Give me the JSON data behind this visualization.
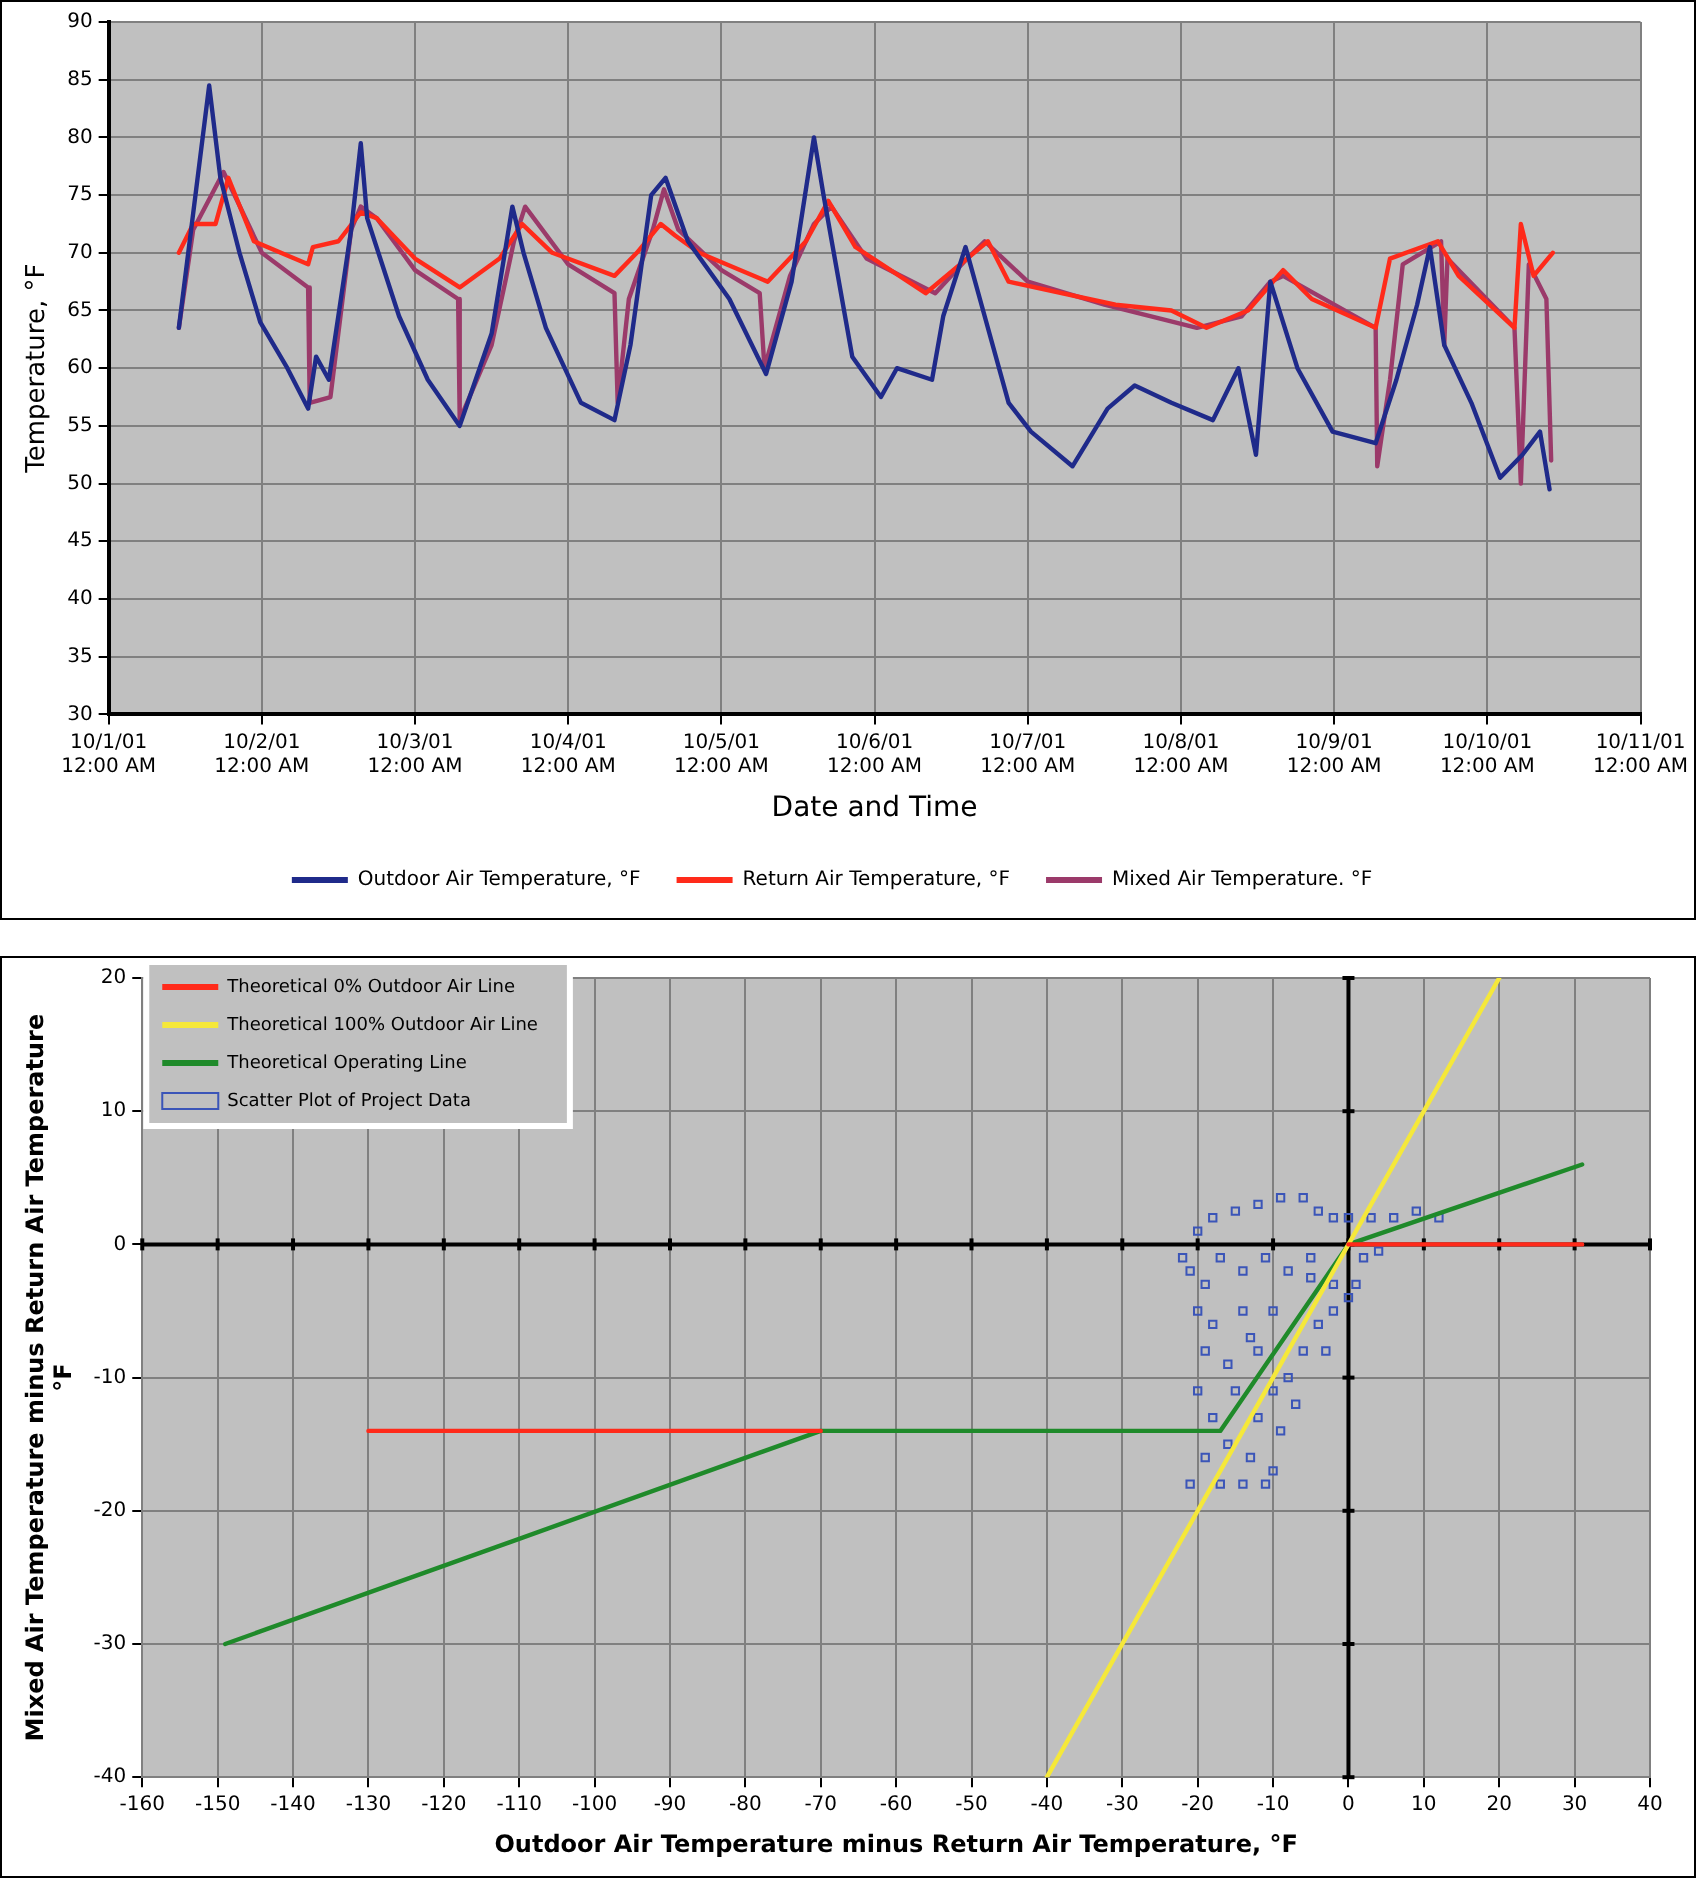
{
  "chart_data": [
    {
      "type": "line",
      "xlabel": "Date and Time",
      "ylabel": "Temperature, °F",
      "grid": true,
      "legend": "bottom",
      "marker": "none",
      "xlim": [
        "--10-01T00:00",
        "--10-11T00:00"
      ],
      "xticks": [
        {
          "value": "--10-01T00:00",
          "label": "10/1/01 12:00 AM"
        },
        {
          "value": "--10-02T00:00",
          "label": "10/2/01 12:00 AM"
        },
        {
          "value": "--10-03T00:00",
          "label": "10/3/01 12:00 AM"
        },
        {
          "value": "--10-04T00:00",
          "label": "10/4/01 12:00 AM"
        },
        {
          "value": "--10-05T00:00",
          "label": "10/5/01 12:00 AM"
        },
        {
          "value": "--10-06T00:00",
          "label": "10/6/01 12:00 AM"
        },
        {
          "value": "--10-07T00:00",
          "label": "10/7/01 12:00 AM"
        },
        {
          "value": "--10-08T00:00",
          "label": "10/8/01 12:00 AM"
        },
        {
          "value": "--10-09T00:00",
          "label": "10/9/01 12:00 AM"
        },
        {
          "value": "--10-10T00:00",
          "label": "10/10/01 12:00 AM"
        },
        {
          "value": "--10-11T00:00",
          "label": "10/11/01 12:00 AM"
        }
      ],
      "ylim": [
        30,
        90
      ],
      "yticks": [
        30,
        35,
        40,
        45,
        50,
        55,
        60,
        65,
        70,
        75,
        80,
        85,
        90
      ],
      "series": [
        {
          "name": "Outdoor Air Temperature, °F",
          "color": "#1f2a8a",
          "x": [
            "--10-01T11:00",
            "--10-01T15:45",
            "--10-01T17:30",
            "--10-01T20:30",
            "--10-01T23:45",
            "--10-02T04:00",
            "--10-02T07:15",
            "--10-02T08:30",
            "--10-02T10:30",
            "--10-02T14:00",
            "--10-02T15:30",
            "--10-02T16:30",
            "--10-02T21:30",
            "--10-03T02:00",
            "--10-03T07:00",
            "--10-03T12:00",
            "--10-03T15:15",
            "--10-03T17:00",
            "--10-03T20:30",
            "--10-04T02:00",
            "--10-04T07:15",
            "--10-04T09:45",
            "--10-04T13:00",
            "--10-04T15:15",
            "--10-04T18:45",
            "--10-05T01:15",
            "--10-05T07:00",
            "--10-05T11:00",
            "--10-05T14:30",
            "--10-05T16:00",
            "--10-05T20:30",
            "--10-06T01:00",
            "--10-06T03:30",
            "--10-06T09:00",
            "--10-06T10:45",
            "--10-06T14:15",
            "--10-06T16:45",
            "--10-06T21:00",
            "--10-07T00:30",
            "--10-07T07:00",
            "--10-07T12:30",
            "--10-07T16:45",
            "--10-07T22:30",
            "--10-08T05:00",
            "--10-08T09:00",
            "--10-08T11:45",
            "--10-08T14:00",
            "--10-08T18:15",
            "--10-08T23:45",
            "--10-09T06:30",
            "--10-09T09:45",
            "--10-09T13:00",
            "--10-09T15:00",
            "--10-09T17:15",
            "--10-09T21:30",
            "--10-10T02:00",
            "--10-10T05:30",
            "--10-10T08:15",
            "--10-10T09:45"
          ],
          "values": [
            63.5,
            84.5,
            76.5,
            70,
            64,
            60,
            56.5,
            61,
            59,
            72,
            79.5,
            73,
            64.5,
            59,
            55,
            63,
            74,
            70,
            63.5,
            57,
            55.5,
            62,
            75,
            76.5,
            71,
            66,
            59.5,
            67.5,
            80,
            75,
            61,
            57.5,
            60,
            59,
            64.5,
            70.5,
            65.5,
            57,
            54.5,
            51.5,
            56.5,
            58.5,
            57,
            55.5,
            60,
            52.5,
            67.5,
            60,
            54.5,
            53.5,
            59,
            65.5,
            70.5,
            62,
            57,
            50.5,
            52.5,
            54.5,
            49.5
          ]
        },
        {
          "name": "Return Air Temperature, °F",
          "color": "#ff2a1a",
          "x": [
            "--10-01T11:00",
            "--10-01T13:15",
            "--10-01T16:45",
            "--10-01T18:45",
            "--10-01T22:45",
            "--10-02T07:15",
            "--10-02T08:00",
            "--10-02T12:00",
            "--10-02T15:30",
            "--10-02T18:00",
            "--10-03T00:00",
            "--10-03T07:00",
            "--10-03T13:15",
            "--10-03T16:45",
            "--10-03T21:30",
            "--10-04T07:15",
            "--10-04T10:45",
            "--10-04T14:30",
            "--10-04T16:45",
            "--10-04T20:30",
            "--10-05T07:15",
            "--10-05T13:15",
            "--10-05T16:45",
            "--10-05T21:00",
            "--10-06T08:00",
            "--10-06T17:45",
            "--10-06T21:00",
            "--10-07T13:45",
            "--10-07T22:30",
            "--10-08T04:00",
            "--10-08T10:30",
            "--10-08T16:00",
            "--10-08T20:30",
            "--10-09T06:30",
            "--10-09T08:45",
            "--10-09T16:15",
            "--10-09T19:30",
            "--10-10T04:15",
            "--10-10T05:15",
            "--10-10T07:15",
            "--10-10T10:15"
          ],
          "values": [
            70,
            72.5,
            72.5,
            76.5,
            71,
            69,
            70.5,
            71,
            73.5,
            73,
            69.5,
            67,
            69.5,
            72.5,
            70,
            68,
            70,
            72.5,
            71.5,
            70,
            67.5,
            71,
            74.5,
            70.5,
            66.5,
            71,
            67.5,
            65.5,
            65,
            63.5,
            65,
            68.5,
            66,
            63.5,
            69.5,
            71,
            68,
            63.5,
            72.5,
            68,
            70
          ]
        },
        {
          "name": "Mixed Air Temperature. °F",
          "color": "#9b3a6a",
          "x": [
            "--10-01T11:00",
            "--10-01T13:15",
            "--10-01T18:00",
            "--10-02T00:00",
            "--10-02T07:15",
            "--10-02T07:30",
            "--10-02T10:45",
            "--10-02T14:00",
            "--10-02T15:30",
            "--10-02T18:00",
            "--10-03T00:00",
            "--10-03T06:45",
            "--10-03T07:00",
            "--10-03T12:00",
            "--10-03T15:30",
            "--10-03T17:15",
            "--10-04T00:00",
            "--10-04T07:15",
            "--10-04T07:45",
            "--10-04T09:30",
            "--10-04T13:15",
            "--10-04T15:00",
            "--10-04T17:15",
            "--10-05T00:00",
            "--10-05T06:00",
            "--10-05T06:45",
            "--10-05T10:45",
            "--10-05T14:30",
            "--10-05T17:15",
            "--10-05T22:45",
            "--10-06T09:30",
            "--10-06T14:30",
            "--10-06T17:15",
            "--10-07T00:00",
            "--10-07T12:00",
            "--10-08T02:30",
            "--10-08T09:30",
            "--10-08T14:00",
            "--10-08T16:00",
            "--10-09T06:30",
            "--10-09T06:45",
            "--10-09T08:45",
            "--10-09T10:45",
            "--10-09T16:45",
            "--10-09T17:15",
            "--10-09T17:45",
            "--10-10T04:15",
            "--10-10T05:15",
            "--10-10T06:30",
            "--10-10T09:15",
            "--10-10T10:00"
          ],
          "values": [
            63.5,
            72,
            77,
            70,
            67,
            57,
            57.5,
            72,
            74,
            73,
            68.5,
            66,
            55.5,
            62,
            71,
            74,
            69,
            66.5,
            57,
            66,
            72,
            75.5,
            72,
            68.5,
            66.5,
            60,
            68,
            72.5,
            74,
            69.5,
            66.5,
            69.5,
            71,
            67.5,
            65.5,
            63.5,
            64.5,
            67.5,
            68,
            63.5,
            51.5,
            59,
            69,
            71,
            62,
            69.5,
            63.5,
            50,
            69,
            66,
            52
          ]
        }
      ]
    },
    {
      "type": "scatter",
      "xlabel": "Outdoor Air Temperature minus Return Air Temperature, °F",
      "ylabel": "Mixed Air Temperature minus Return Air Temperature\n°F",
      "grid": true,
      "legend": "top left",
      "xlim": [
        -160,
        40
      ],
      "xticks": [
        -160,
        -150,
        -140,
        -130,
        -120,
        -110,
        -100,
        -90,
        -80,
        -70,
        -60,
        -50,
        -40,
        -30,
        -20,
        -10,
        0,
        10,
        20,
        30,
        40
      ],
      "ylim": [
        -40,
        20
      ],
      "yticks": [
        -40,
        -30,
        -20,
        -10,
        0,
        10,
        20
      ],
      "series": [
        {
          "name": "Theoretical 0% Outdoor Air Line",
          "type": "line",
          "marker": "none",
          "color": "#ff2a1a",
          "x": [
            -130,
            -70,
            -20,
            0,
            31
          ],
          "values": [
            -14,
            -14,
            null,
            0,
            0
          ]
        },
        {
          "name": "Theoretical 100% Outdoor Air Line",
          "type": "line",
          "marker": "none",
          "color": "#f5e83a",
          "x": [
            -40,
            20
          ],
          "values": [
            -40,
            20
          ]
        },
        {
          "name": "Theoretical Operating Line",
          "type": "line",
          "marker": "none",
          "color": "#1f8a2a",
          "x": [
            -149,
            -70,
            -17,
            0,
            31
          ],
          "values": [
            -30,
            -14,
            -14,
            0,
            6
          ]
        },
        {
          "name": "Scatter Plot of Project Data",
          "type": "scatter",
          "marker": "square",
          "color": "#3b55b8",
          "x": [
            -22,
            -20,
            -18,
            -15,
            -12,
            -9,
            -6,
            -4,
            -2,
            0,
            3,
            6,
            9,
            12,
            4,
            2,
            -21,
            -19,
            -17,
            -14,
            -11,
            -8,
            -5,
            -2,
            0,
            1,
            -20,
            -19,
            -20,
            -18,
            -19,
            -17,
            -21,
            -16,
            -18,
            -16,
            -14,
            -12,
            -10,
            -12,
            -13,
            -11,
            -14,
            -8,
            -6,
            -4,
            -2,
            -7,
            -9,
            -10,
            -15,
            -13,
            -5,
            -10,
            -3
          ],
          "values": [
            -1,
            1,
            2,
            2.5,
            3,
            3.5,
            3.5,
            2.5,
            2,
            2,
            2,
            2,
            2.5,
            2,
            -0.5,
            -1,
            -2,
            -3,
            -1,
            -2,
            -1,
            -2,
            -1,
            -3,
            -4,
            -3,
            -5,
            -8,
            -11,
            -13,
            -16,
            -18,
            -18,
            -15,
            -6,
            -9,
            -5,
            -8,
            -11,
            -13,
            -16,
            -18,
            -18,
            -10,
            -8,
            -6,
            -5,
            -12,
            -14,
            -17,
            -11,
            -7,
            -2.5,
            -5,
            -8
          ]
        }
      ]
    }
  ]
}
